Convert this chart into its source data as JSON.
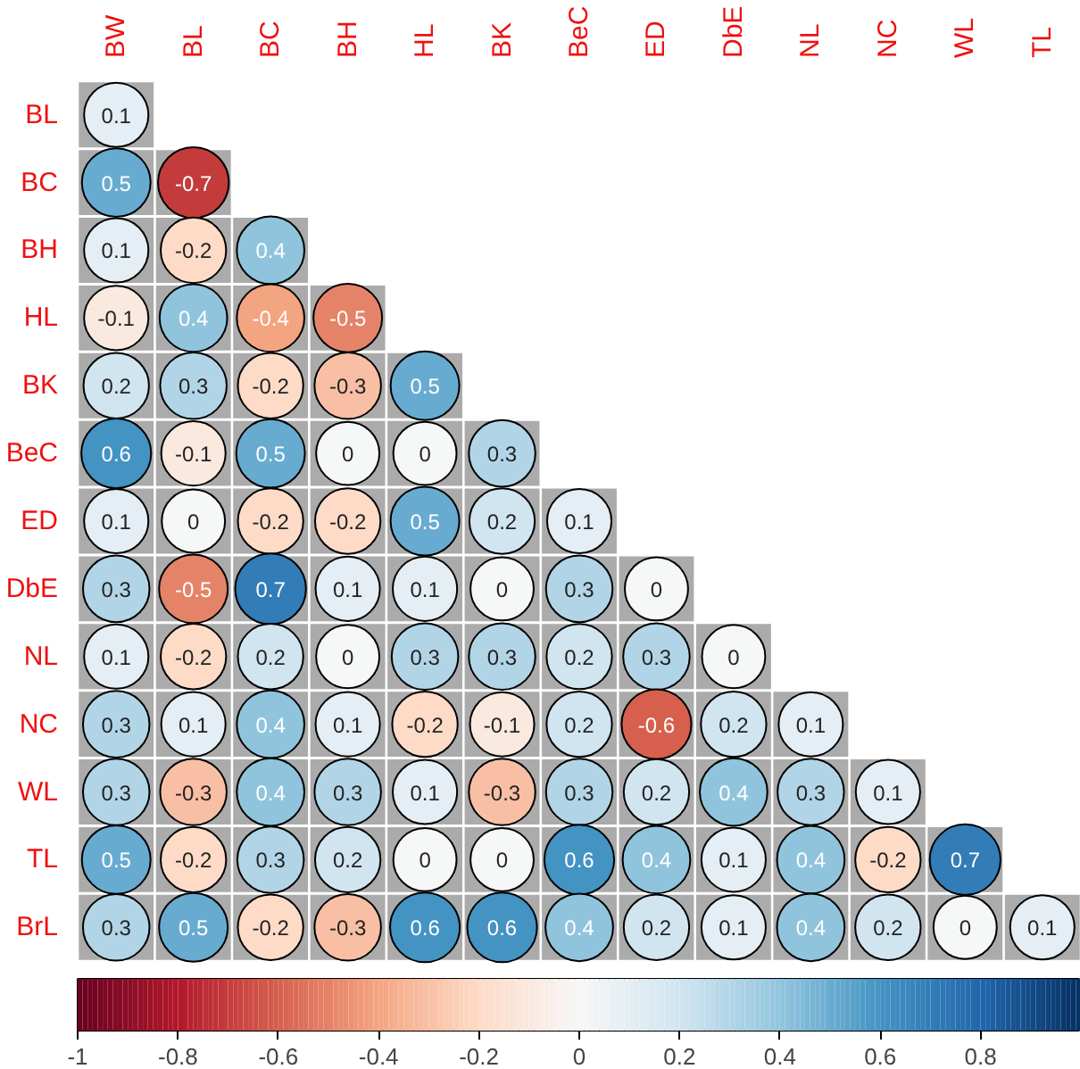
{
  "chart_data": {
    "type": "heatmap",
    "categories": [
      "BW",
      "BL",
      "BC",
      "BH",
      "HL",
      "BK",
      "BeC",
      "ED",
      "DbE",
      "NL",
      "NC",
      "WL",
      "TL"
    ],
    "y_categories": [
      "BL",
      "BC",
      "BH",
      "HL",
      "BK",
      "BeC",
      "ED",
      "DbE",
      "NL",
      "NC",
      "WL",
      "TL",
      "BrL"
    ],
    "cells": [
      [
        0.1,
        null,
        null,
        null,
        null,
        null,
        null,
        null,
        null,
        null,
        null,
        null,
        null
      ],
      [
        0.5,
        -0.7,
        null,
        null,
        null,
        null,
        null,
        null,
        null,
        null,
        null,
        null,
        null
      ],
      [
        0.1,
        -0.2,
        0.4,
        null,
        null,
        null,
        null,
        null,
        null,
        null,
        null,
        null,
        null
      ],
      [
        -0.1,
        0.4,
        -0.4,
        -0.5,
        null,
        null,
        null,
        null,
        null,
        null,
        null,
        null,
        null
      ],
      [
        0.2,
        0.3,
        -0.2,
        -0.3,
        0.5,
        null,
        null,
        null,
        null,
        null,
        null,
        null,
        null
      ],
      [
        0.6,
        -0.1,
        0.5,
        0,
        0,
        0.3,
        null,
        null,
        null,
        null,
        null,
        null,
        null
      ],
      [
        0.1,
        0,
        -0.2,
        -0.2,
        0.5,
        0.2,
        0.1,
        null,
        null,
        null,
        null,
        null,
        null
      ],
      [
        0.3,
        -0.5,
        0.7,
        0.1,
        0.1,
        0,
        0.3,
        0,
        null,
        null,
        null,
        null,
        null
      ],
      [
        0.1,
        -0.2,
        0.2,
        0,
        0.3,
        0.3,
        0.2,
        0.3,
        0,
        null,
        null,
        null,
        null
      ],
      [
        0.3,
        0.1,
        0.4,
        0.1,
        -0.2,
        -0.1,
        0.2,
        -0.6,
        0.2,
        0.1,
        null,
        null,
        null
      ],
      [
        0.3,
        -0.3,
        0.4,
        0.3,
        0.1,
        -0.3,
        0.3,
        0.2,
        0.4,
        0.3,
        0.1,
        null,
        null
      ],
      [
        0.5,
        -0.2,
        0.3,
        0.2,
        0,
        0,
        0.6,
        0.4,
        0.1,
        0.4,
        -0.2,
        0.7,
        null
      ],
      [
        0.3,
        0.5,
        -0.2,
        -0.3,
        0.6,
        0.6,
        0.4,
        0.2,
        0.1,
        0.4,
        0.2,
        0,
        0.1
      ]
    ],
    "clim": [
      -1,
      1
    ],
    "cticks": [
      -1,
      -0.8,
      -0.6,
      -0.4,
      -0.2,
      0,
      0.2,
      0.4,
      0.6,
      0.8
    ],
    "data_labels": true
  }
}
